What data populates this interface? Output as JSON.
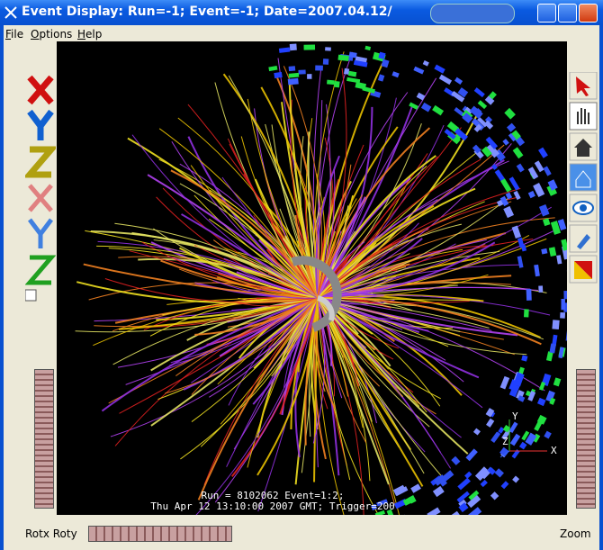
{
  "window": {
    "title": "Event Display: Run=-1; Event=-1; Date=2007.04.12/"
  },
  "menu": [
    "File",
    "Options",
    "Help"
  ],
  "display": {
    "run_info": "Run = 8102062 Event=1:2;",
    "time_info": "Thu Apr 12 13:10:00 2007 GMT; Trigger=200",
    "axes": [
      "Y",
      "Z",
      "X"
    ]
  },
  "status": {
    "left": "Rotx Roty",
    "right": "Zoom"
  }
}
